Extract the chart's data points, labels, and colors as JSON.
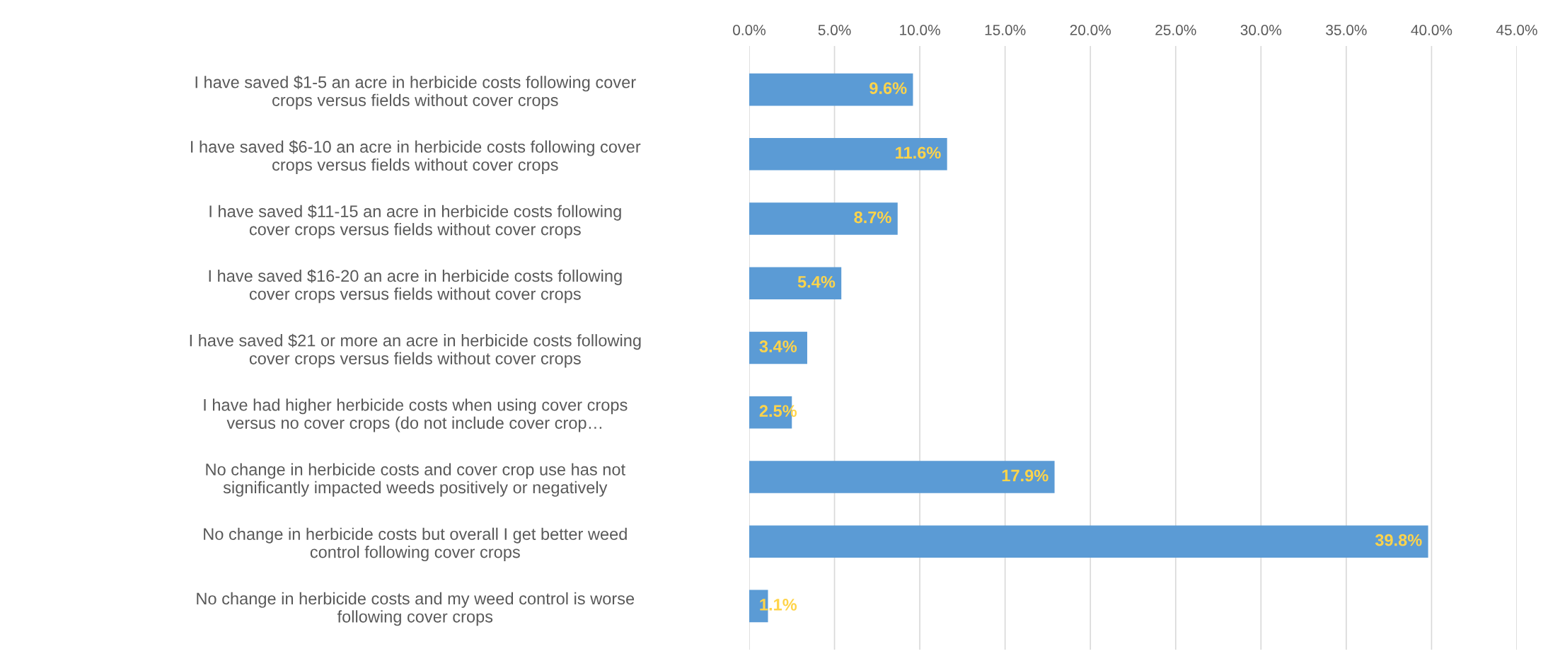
{
  "chart_data": {
    "type": "bar",
    "orientation": "horizontal",
    "categories": [
      "I have saved $1-5 an acre in herbicide costs following cover\ncrops versus fields without cover crops",
      "I have saved $6-10 an acre in herbicide costs following cover\ncrops versus fields without cover crops",
      "I have saved $11-15 an acre in herbicide costs following\ncover crops versus fields without cover crops",
      "I have saved $16-20 an acre in herbicide costs following\ncover crops versus fields without cover crops",
      "I have saved $21 or more an acre in herbicide costs following\ncover crops versus fields without cover crops",
      "I have had higher herbicide costs when using cover crops\nversus no cover crops (do not include cover crop…",
      "No change in herbicide costs and cover crop use has not\nsignificantly impacted weeds positively or negatively",
      "No change in herbicide costs but overall I get better weed\ncontrol following cover crops",
      "No change in herbicide costs and my weed control is worse\nfollowing cover crops"
    ],
    "values": [
      9.6,
      11.6,
      8.7,
      5.4,
      3.4,
      2.5,
      17.9,
      39.8,
      1.1
    ],
    "value_labels": [
      "9.6%",
      "11.6%",
      "8.7%",
      "5.4%",
      "3.4%",
      "2.5%",
      "17.9%",
      "39.8%",
      "1.1%"
    ],
    "color": "#5b9bd5",
    "xlim": [
      0,
      45
    ],
    "xticks": [
      {
        "value": 0,
        "label": "0.0%"
      },
      {
        "value": 5,
        "label": "5.0%"
      },
      {
        "value": 10,
        "label": "10.0%"
      },
      {
        "value": 15,
        "label": "15.0%"
      },
      {
        "value": 20,
        "label": "20.0%"
      },
      {
        "value": 25,
        "label": "25.0%"
      },
      {
        "value": 30,
        "label": "30.0%"
      },
      {
        "value": 35,
        "label": "35.0%"
      },
      {
        "value": 40,
        "label": "40.0%"
      },
      {
        "value": 45,
        "label": "45.0%"
      }
    ],
    "grid": "x"
  }
}
